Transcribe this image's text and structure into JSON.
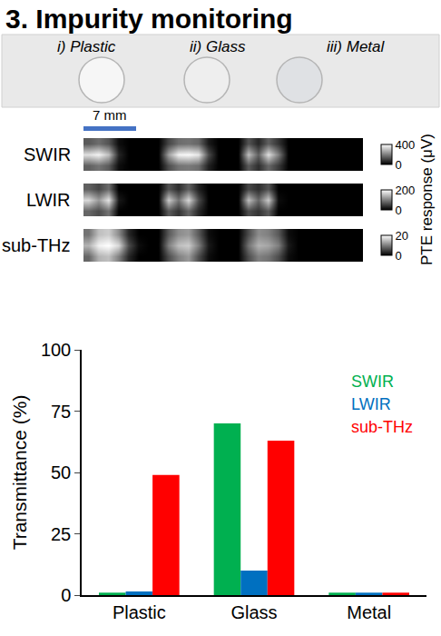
{
  "title": "3. Impurity monitoring",
  "photo": {
    "labels": [
      "i) Plastic",
      "ii) Glass",
      "iii) Metal"
    ]
  },
  "scale_bar": "7 mm",
  "heatmaps": {
    "colorbar_title": "PTE response (μV)",
    "tick_labels": false,
    "rows": [
      {
        "name": "SWIR",
        "zlim": [
          0,
          400
        ],
        "zticks": [
          0,
          400
        ],
        "cells": [
          [
            150,
            180,
            140,
            20,
            0,
            0,
            0,
            0,
            120,
            180,
            190,
            170,
            50,
            0,
            0,
            0,
            140,
            70,
            160,
            90,
            0,
            0,
            0,
            0,
            0,
            0,
            0,
            0
          ],
          [
            350,
            380,
            300,
            60,
            0,
            0,
            0,
            0,
            250,
            380,
            390,
            360,
            120,
            0,
            0,
            0,
            300,
            150,
            350,
            200,
            0,
            0,
            0,
            0,
            0,
            0,
            0,
            0
          ],
          [
            140,
            170,
            130,
            20,
            0,
            0,
            0,
            0,
            110,
            170,
            180,
            160,
            40,
            0,
            0,
            0,
            130,
            60,
            150,
            80,
            0,
            0,
            0,
            0,
            0,
            0,
            0,
            0
          ]
        ]
      },
      {
        "name": "LWIR",
        "zlim": [
          0,
          200
        ],
        "zticks": [
          0,
          200
        ],
        "cells": [
          [
            80,
            60,
            90,
            0,
            0,
            0,
            0,
            0,
            70,
            40,
            80,
            30,
            0,
            0,
            0,
            0,
            60,
            40,
            70,
            0,
            0,
            0,
            0,
            0,
            0,
            0,
            0,
            0
          ],
          [
            170,
            120,
            180,
            20,
            0,
            0,
            0,
            0,
            160,
            90,
            170,
            60,
            0,
            0,
            0,
            0,
            150,
            80,
            160,
            10,
            0,
            0,
            0,
            0,
            0,
            0,
            0,
            0
          ],
          [
            75,
            55,
            85,
            0,
            0,
            0,
            0,
            0,
            65,
            35,
            75,
            25,
            0,
            0,
            0,
            0,
            55,
            35,
            65,
            0,
            0,
            0,
            0,
            0,
            0,
            0,
            0,
            0
          ]
        ]
      },
      {
        "name": "sub-THz",
        "zlim": [
          0,
          20
        ],
        "zticks": [
          0,
          20
        ],
        "cells": [
          [
            8,
            14,
            15,
            10,
            3,
            0,
            0,
            0,
            6,
            10,
            12,
            6,
            1,
            0,
            0,
            0,
            6,
            10,
            9,
            6,
            1,
            0,
            0,
            0,
            0,
            0,
            0,
            0
          ],
          [
            14,
            19,
            20,
            17,
            6,
            1,
            0,
            0,
            10,
            15,
            16,
            10,
            2,
            0,
            0,
            0,
            9,
            14,
            13,
            10,
            2,
            0,
            0,
            0,
            0,
            0,
            0,
            0
          ],
          [
            9,
            15,
            16,
            11,
            3,
            0,
            0,
            0,
            7,
            11,
            12,
            7,
            1,
            0,
            0,
            0,
            6,
            11,
            10,
            7,
            1,
            0,
            0,
            0,
            0,
            0,
            0,
            0
          ]
        ]
      }
    ]
  },
  "chart_data": {
    "type": "bar",
    "categories": [
      "Plastic",
      "Glass",
      "Metal"
    ],
    "series": [
      {
        "name": "SWIR",
        "color": "#00b050",
        "values": [
          1,
          70,
          1
        ]
      },
      {
        "name": "LWIR",
        "color": "#0070c0",
        "values": [
          1.5,
          10,
          1
        ]
      },
      {
        "name": "sub-THz",
        "color": "#ff0000",
        "values": [
          49,
          63,
          1
        ]
      }
    ],
    "ylabel": "Transmittance (%)",
    "ylim": [
      0,
      100
    ],
    "yticks": [
      0,
      25,
      50,
      75,
      100
    ],
    "grid": false,
    "legend": "upper right"
  }
}
